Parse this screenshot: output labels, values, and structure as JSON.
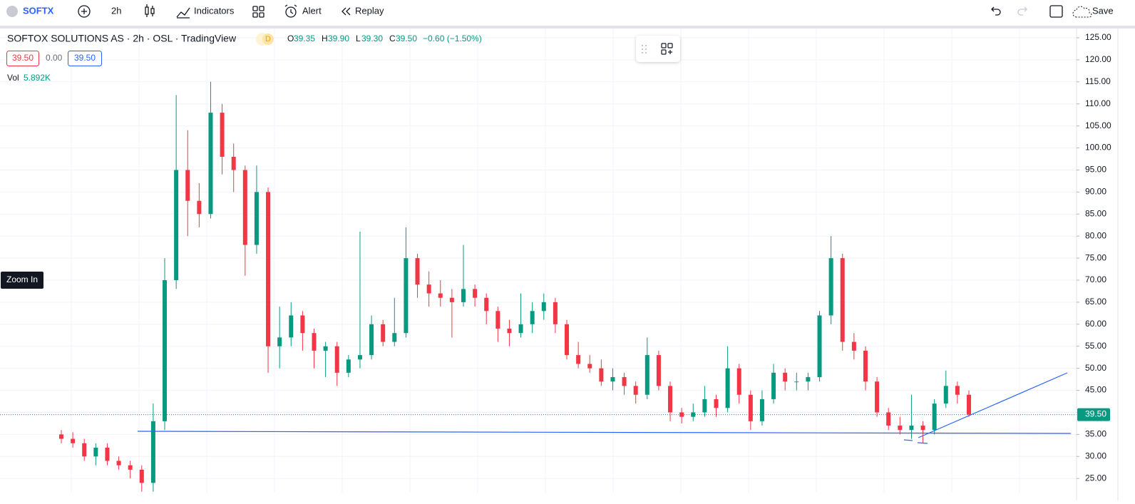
{
  "toolbar": {
    "symbol": "SOFTX",
    "interval": "2h",
    "indicators": "Indicators",
    "alert": "Alert",
    "replay": "Replay",
    "save": "Save"
  },
  "legend": {
    "title": "SOFTOX SOLUTIONS AS · 2h · OSL · TradingView",
    "badge": "D",
    "o_label": "O",
    "o": "39.35",
    "h_label": "H",
    "h": "39.90",
    "l_label": "L",
    "l": "39.30",
    "c_label": "C",
    "c": "39.50",
    "change": "−0.60 (−1.50%)",
    "bid": "39.50",
    "spread": "0.00",
    "ask": "39.50",
    "vol_label": "Vol",
    "vol": "5.892K"
  },
  "tooltip": "Zoom In",
  "chart_data": {
    "type": "candlestick",
    "up_color": "#089981",
    "down_color": "#f23645",
    "grid": true,
    "ylim": [
      21.8,
      127.1
    ],
    "yticks": [
      {
        "value": 25,
        "label": "25.00"
      },
      {
        "value": 30,
        "label": "30.00"
      },
      {
        "value": 35,
        "label": "35.00"
      },
      {
        "value": 40,
        "label": "40.00"
      },
      {
        "value": 45,
        "label": "45.00"
      },
      {
        "value": 50,
        "label": "50.00"
      },
      {
        "value": 55,
        "label": "55.00"
      },
      {
        "value": 60,
        "label": "60.00"
      },
      {
        "value": 65,
        "label": "65.00"
      },
      {
        "value": 70,
        "label": "70.00"
      },
      {
        "value": 75,
        "label": "75.00"
      },
      {
        "value": 80,
        "label": "80.00"
      },
      {
        "value": 85,
        "label": "85.00"
      },
      {
        "value": 90,
        "label": "90.00"
      },
      {
        "value": 95,
        "label": "95.00"
      },
      {
        "value": 100,
        "label": "100.00"
      },
      {
        "value": 105,
        "label": "105.00"
      },
      {
        "value": 110,
        "label": "110.00"
      },
      {
        "value": 115,
        "label": "115.00"
      },
      {
        "value": 120,
        "label": "120.00"
      },
      {
        "value": 125,
        "label": "125.00"
      }
    ],
    "last_price": {
      "value": 39.5,
      "label": "39.50"
    },
    "candles": [
      [
        35,
        36,
        33,
        34
      ],
      [
        34,
        35.5,
        32,
        33
      ],
      [
        33,
        34,
        29,
        30
      ],
      [
        30,
        33,
        28,
        32
      ],
      [
        32,
        33,
        28,
        29
      ],
      [
        29,
        30,
        27,
        28
      ],
      [
        28,
        29,
        25,
        27
      ],
      [
        27,
        28,
        22,
        24
      ],
      [
        24,
        42,
        22,
        38
      ],
      [
        38,
        75,
        36,
        70
      ],
      [
        70,
        112,
        68,
        95
      ],
      [
        95,
        104,
        80,
        88
      ],
      [
        88,
        92,
        82,
        85
      ],
      [
        85,
        115,
        84,
        108
      ],
      [
        108,
        110,
        94,
        98
      ],
      [
        98,
        101,
        90,
        95
      ],
      [
        95,
        96,
        71,
        78
      ],
      [
        78,
        96,
        76,
        90
      ],
      [
        90,
        91,
        49,
        55
      ],
      [
        55,
        64,
        50,
        57
      ],
      [
        57,
        65,
        55,
        62
      ],
      [
        62,
        63,
        54,
        58
      ],
      [
        58,
        59,
        50,
        54
      ],
      [
        54,
        56,
        48,
        55
      ],
      [
        55,
        56,
        46,
        49
      ],
      [
        49,
        53,
        48,
        52
      ],
      [
        52,
        81,
        50,
        53
      ],
      [
        53,
        62,
        52,
        60
      ],
      [
        60,
        61,
        55,
        56
      ],
      [
        56,
        66,
        55,
        58
      ],
      [
        58,
        82,
        57,
        75
      ],
      [
        75,
        76,
        66,
        69
      ],
      [
        69,
        72,
        64,
        67
      ],
      [
        67,
        70,
        64,
        66
      ],
      [
        66,
        68,
        57,
        65
      ],
      [
        65,
        78,
        64,
        68
      ],
      [
        68,
        69,
        64,
        66
      ],
      [
        66,
        67,
        60,
        63
      ],
      [
        63,
        64,
        56,
        59
      ],
      [
        59,
        61,
        55,
        58
      ],
      [
        58,
        67,
        57,
        60
      ],
      [
        60,
        65,
        58,
        63
      ],
      [
        63,
        67,
        61,
        65
      ],
      [
        65,
        66,
        58,
        60
      ],
      [
        60,
        61,
        52,
        53
      ],
      [
        53,
        56,
        50,
        51
      ],
      [
        51,
        53,
        49,
        50
      ],
      [
        50,
        52,
        46,
        47
      ],
      [
        47,
        50,
        45,
        48
      ],
      [
        48,
        49,
        44,
        46
      ],
      [
        46,
        47,
        42,
        44
      ],
      [
        44,
        57,
        43,
        53
      ],
      [
        53,
        54,
        45,
        46
      ],
      [
        46,
        47,
        38,
        40
      ],
      [
        40,
        41,
        37.5,
        39
      ],
      [
        39,
        42,
        38,
        40
      ],
      [
        40,
        46,
        39,
        43
      ],
      [
        43,
        44,
        39,
        41
      ],
      [
        41,
        55,
        40,
        50
      ],
      [
        50,
        51,
        42,
        44
      ],
      [
        44,
        45,
        36,
        38
      ],
      [
        38,
        45,
        37,
        43
      ],
      [
        43,
        51,
        42,
        49
      ],
      [
        49,
        50,
        45,
        47
      ],
      [
        47,
        49,
        45,
        47
      ],
      [
        47,
        49,
        45,
        48
      ],
      [
        48,
        63,
        47,
        62
      ],
      [
        62,
        80,
        60,
        75
      ],
      [
        75,
        76,
        54,
        56
      ],
      [
        56,
        58,
        52,
        54
      ],
      [
        54,
        55,
        45,
        47
      ],
      [
        47,
        48,
        39,
        40
      ],
      [
        40,
        41,
        36,
        37
      ],
      [
        37,
        39,
        35,
        36
      ],
      [
        36,
        44,
        34,
        37
      ],
      [
        37,
        38,
        33,
        36
      ],
      [
        36,
        43,
        35,
        42
      ],
      [
        42,
        49.5,
        41,
        46
      ],
      [
        46,
        47,
        42,
        44
      ],
      [
        44,
        45,
        39,
        39.5
      ]
    ]
  }
}
